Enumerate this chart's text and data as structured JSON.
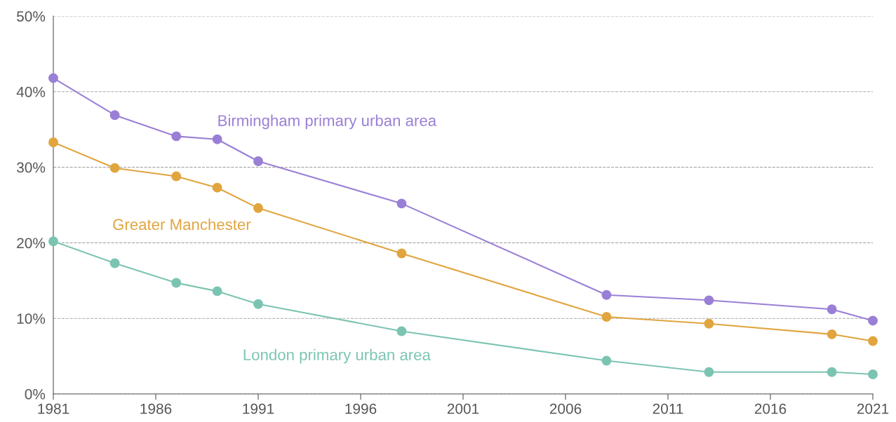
{
  "chart_data": {
    "type": "line",
    "marker": "circle",
    "grid": "y",
    "x": [
      1981,
      1984,
      1987,
      1989,
      1991,
      1998,
      2008,
      2013,
      2019,
      2021
    ],
    "xlim": [
      1981,
      2021
    ],
    "xticks": [
      1981,
      1986,
      1991,
      1996,
      2001,
      2006,
      2011,
      2016,
      2021
    ],
    "ylim": [
      0,
      50
    ],
    "yticks": [
      {
        "value": 0,
        "label": "0%"
      },
      {
        "value": 10,
        "label": "10%"
      },
      {
        "value": 20,
        "label": "20%"
      },
      {
        "value": 30,
        "label": "30%"
      },
      {
        "value": 40,
        "label": "40%"
      },
      {
        "value": 50,
        "label": "50%"
      }
    ],
    "series": [
      {
        "name": "Birmingham primary urban area",
        "color": "#9a7fd6",
        "values": [
          41.8,
          36.9,
          34.1,
          33.7,
          30.8,
          25.2,
          13.1,
          12.4,
          11.2,
          9.7
        ]
      },
      {
        "name": "Greater Manchester",
        "color": "#e0a53e",
        "values": [
          33.3,
          29.9,
          28.8,
          27.3,
          24.6,
          18.6,
          10.2,
          9.3,
          7.9,
          7.0
        ]
      },
      {
        "name": "London primary urban area",
        "color": "#7cc4b2",
        "values": [
          20.2,
          17.3,
          14.7,
          13.6,
          11.9,
          8.3,
          4.4,
          2.9,
          2.9,
          2.6
        ]
      }
    ]
  }
}
